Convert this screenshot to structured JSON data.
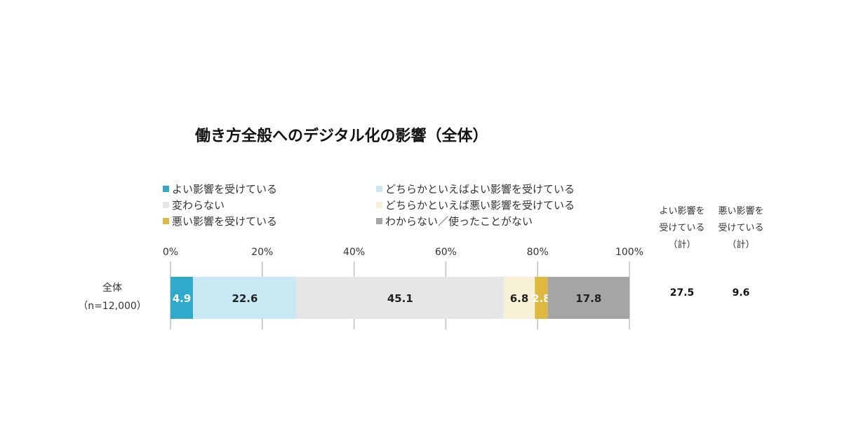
{
  "chart_data": {
    "type": "bar",
    "orientation": "horizontal-stacked-100",
    "title": "働き方全般へのデジタル化の影響（全体）",
    "xlim": [
      0,
      100
    ],
    "xticks": [
      "0%",
      "20%",
      "40%",
      "60%",
      "80%",
      "100%"
    ],
    "grid": false,
    "legend_placement": "top",
    "categories": [
      {
        "line1": "全体",
        "line2": "（n=12,000）"
      }
    ],
    "series": [
      {
        "name": "よい影響を受けている",
        "values": [
          4.9
        ],
        "label": "4.9",
        "color": "#2fa9cc",
        "label_color": "#ffffff"
      },
      {
        "name": "どちらかといえばよい影響を受けている",
        "values": [
          22.6
        ],
        "label": "22.6",
        "color": "#c8e8f3",
        "label_color": "#222222"
      },
      {
        "name": "変わらない",
        "values": [
          45.1
        ],
        "label": "45.1",
        "color": "#e6e6e6",
        "label_color": "#222222"
      },
      {
        "name": "どちらかといえば悪い影響を受けている",
        "values": [
          6.8
        ],
        "label": "6.8",
        "color": "#f8f0d7",
        "label_color": "#222222"
      },
      {
        "name": "悪い影響を受けている",
        "values": [
          2.8
        ],
        "label": "2.8",
        "color": "#dfb93f",
        "label_color": "#ffffff"
      },
      {
        "name": "わからない／使ったことがない",
        "values": [
          17.8
        ],
        "label": "17.8",
        "color": "#a5a5a5",
        "label_color": "#222222"
      }
    ],
    "totals": [
      {
        "header_line1": "よい影響を",
        "header_line2": "受けている",
        "header_line3": "（計）",
        "values": [
          "27.5"
        ]
      },
      {
        "header_line1": "悪い影響を",
        "header_line2": "受けている",
        "header_line3": "（計）",
        "values": [
          "9.6"
        ]
      }
    ]
  }
}
